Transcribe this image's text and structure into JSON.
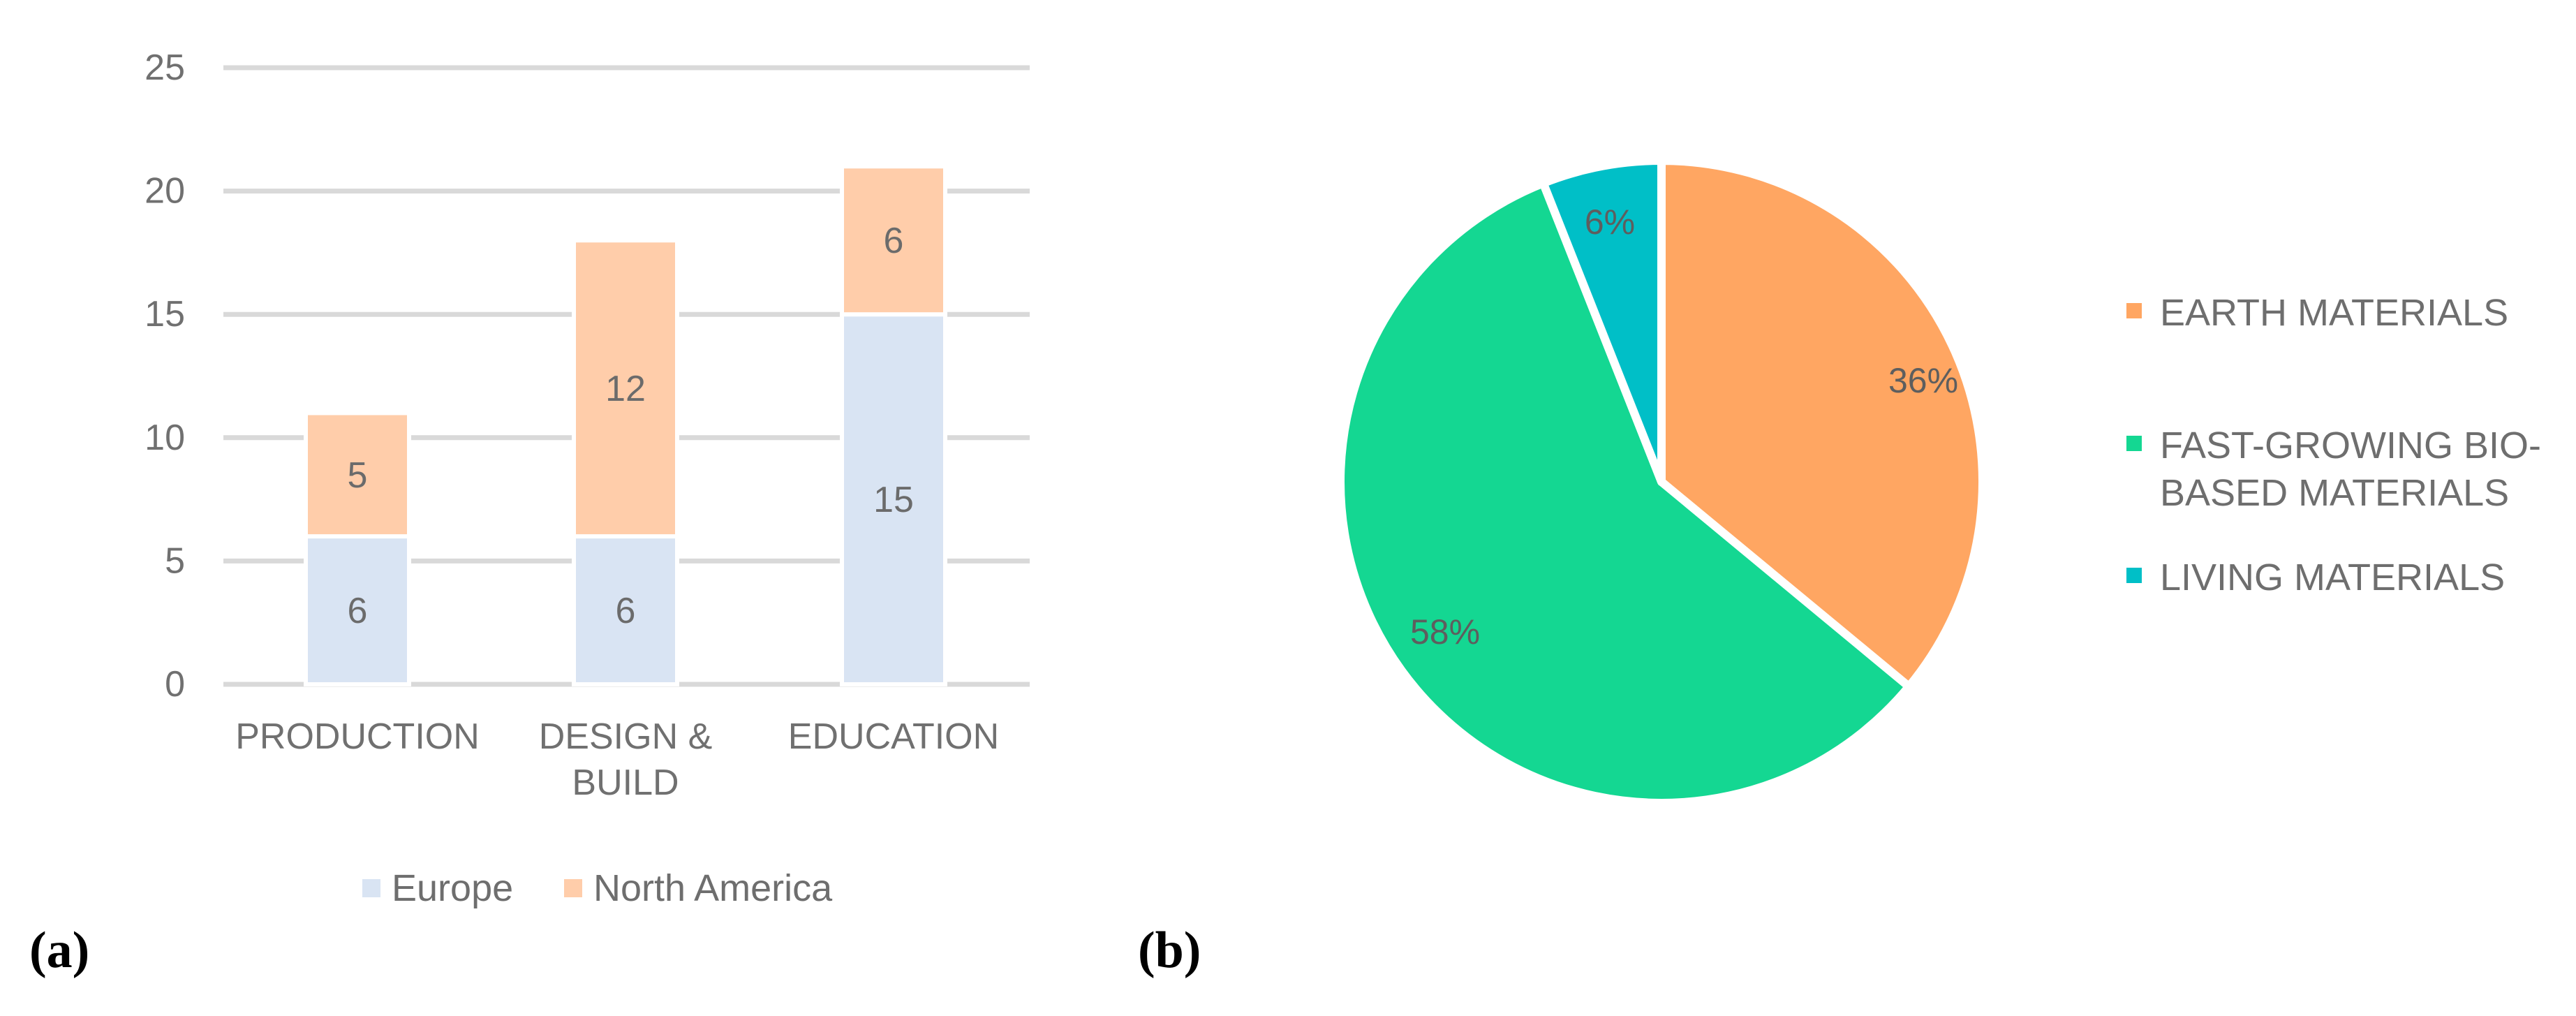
{
  "panels": {
    "a": {
      "label": "(a)"
    },
    "b": {
      "label": "(b)"
    }
  },
  "chart_data": [
    {
      "type": "bar",
      "stacked": true,
      "categories": [
        [
          "PRODUCTION"
        ],
        [
          "DESIGN &",
          "BUILD"
        ],
        [
          "EDUCATION"
        ]
      ],
      "series": [
        {
          "name": "Europe",
          "values": [
            6,
            6,
            15
          ],
          "color": "#d9e4f3"
        },
        {
          "name": "North America",
          "values": [
            5,
            12,
            6
          ],
          "color": "#ffcdaa"
        }
      ],
      "ylim": [
        0,
        25
      ],
      "yticks": [
        "0",
        "5",
        "10",
        "15",
        "20",
        "25"
      ],
      "grid": true,
      "legend_position": "bottom",
      "data_labels": true
    },
    {
      "type": "pie",
      "slices": [
        {
          "label": "EARTH MATERIALS",
          "legend_lines": [
            "EARTH MATERIALS"
          ],
          "value": 36,
          "display": "36%",
          "color": "#ffa662"
        },
        {
          "label": "FAST-GROWING BIO-BASED MATERIALS",
          "legend_lines": [
            "FAST-GROWING BIO-",
            "BASED MATERIALS"
          ],
          "value": 58,
          "display": "58%",
          "color": "#14d792"
        },
        {
          "label": "LIVING MATERIALS",
          "legend_lines": [
            "LIVING MATERIALS"
          ],
          "value": 6,
          "display": "6%",
          "color": "#00bfc7"
        }
      ],
      "legend_position": "right"
    }
  ]
}
